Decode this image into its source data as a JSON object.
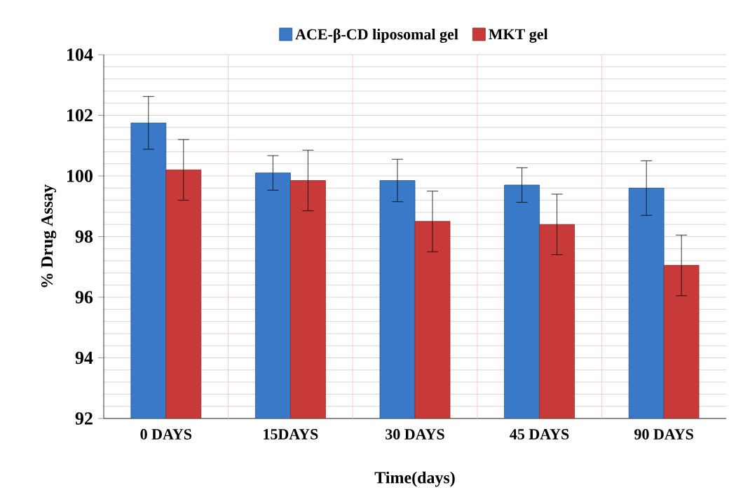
{
  "chart_data": {
    "type": "bar",
    "xlabel": "Time(days)",
    "ylabel": "% Drug Assay",
    "categories": [
      "0 DAYS",
      "15DAYS",
      "30 DAYS",
      "45 DAYS",
      "90 DAYS"
    ],
    "series": [
      {
        "name": "ACE-β-CD liposomal gel",
        "color": "#3a78c8",
        "values": [
          101.75,
          100.1,
          99.85,
          99.7,
          99.6
        ],
        "errors": [
          0.87,
          0.57,
          0.7,
          0.57,
          0.9
        ]
      },
      {
        "name": "MKT gel",
        "color": "#c83a3a",
        "values": [
          100.2,
          99.85,
          98.5,
          98.4,
          97.05
        ],
        "errors": [
          1.0,
          1.0,
          1.0,
          1.0,
          1.0
        ]
      }
    ],
    "ylim": [
      92,
      104
    ],
    "yticks": [
      92,
      94,
      96,
      98,
      100,
      102,
      104
    ],
    "grid": true,
    "legend": "top"
  }
}
